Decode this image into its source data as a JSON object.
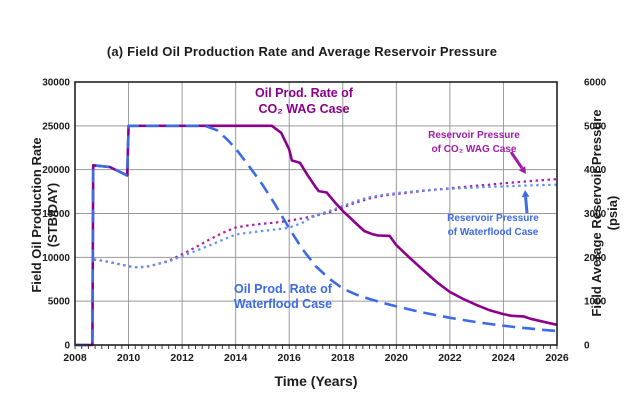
{
  "chart_data": {
    "type": "line",
    "title": "(a) Field Oil Production Rate and Average Reservoir Pressure",
    "xlabel": "Time (Years)",
    "grid": true,
    "x_axis": {
      "min": 2008,
      "max": 2026,
      "major_tick_step": 2,
      "minor_tick_step": 0.25,
      "tick_labels": [
        "2008",
        "2010",
        "2012",
        "2014",
        "2016",
        "2018",
        "2020",
        "2022",
        "2024",
        "2026"
      ]
    },
    "left_axis": {
      "label": "Field Oil Production Rate",
      "unit": "(STB/DAY)",
      "min": 0,
      "max": 30000,
      "tick_step": 5000,
      "ticks": [
        0,
        5000,
        10000,
        15000,
        20000,
        25000,
        30000
      ]
    },
    "right_axis": {
      "label": "Field Average Reservoir Pressure",
      "unit": "(psia)",
      "min": 0,
      "max": 6000,
      "tick_step": 1000,
      "ticks": [
        0,
        1000,
        2000,
        3000,
        4000,
        5000,
        6000
      ]
    },
    "series": [
      {
        "name": "Reservoir Pressure of CO2 WAG Case",
        "axis": "right",
        "color": "#A61CA6",
        "line_style": "dotted",
        "width": 2.2,
        "points": [
          [
            2008.7,
            1950
          ],
          [
            2009,
            1925
          ],
          [
            2009.5,
            1865
          ],
          [
            2010,
            1795
          ],
          [
            2010.35,
            1770
          ],
          [
            2010.7,
            1790
          ],
          [
            2011,
            1835
          ],
          [
            2011.5,
            1920
          ],
          [
            2012,
            2070
          ],
          [
            2012.5,
            2230
          ],
          [
            2013,
            2400
          ],
          [
            2013.5,
            2555
          ],
          [
            2014,
            2680
          ],
          [
            2014.5,
            2730
          ],
          [
            2015,
            2765
          ],
          [
            2015.5,
            2795
          ],
          [
            2016,
            2835
          ],
          [
            2016.5,
            2890
          ],
          [
            2017,
            2950
          ],
          [
            2017.5,
            3030
          ],
          [
            2018,
            3140
          ],
          [
            2018.5,
            3250
          ],
          [
            2019,
            3345
          ],
          [
            2019.5,
            3405
          ],
          [
            2020,
            3445
          ],
          [
            2020.5,
            3480
          ],
          [
            2021,
            3515
          ],
          [
            2021.5,
            3545
          ],
          [
            2022,
            3575
          ],
          [
            2022.5,
            3605
          ],
          [
            2023,
            3635
          ],
          [
            2023.5,
            3660
          ],
          [
            2024,
            3690
          ],
          [
            2024.5,
            3715
          ],
          [
            2025,
            3740
          ],
          [
            2025.5,
            3762
          ],
          [
            2026,
            3785
          ]
        ]
      },
      {
        "name": "Reservoir Pressure of Waterflood Case",
        "axis": "right",
        "color": "#6190F2",
        "line_style": "dotted",
        "width": 2.2,
        "points": [
          [
            2008.7,
            1950
          ],
          [
            2009,
            1925
          ],
          [
            2009.5,
            1865
          ],
          [
            2010,
            1795
          ],
          [
            2010.35,
            1770
          ],
          [
            2010.7,
            1790
          ],
          [
            2011,
            1835
          ],
          [
            2011.5,
            1905
          ],
          [
            2012,
            2030
          ],
          [
            2012.5,
            2145
          ],
          [
            2013,
            2265
          ],
          [
            2013.5,
            2395
          ],
          [
            2014,
            2520
          ],
          [
            2014.5,
            2565
          ],
          [
            2015,
            2600
          ],
          [
            2015.5,
            2635
          ],
          [
            2016,
            2675
          ],
          [
            2016.5,
            2790
          ],
          [
            2017,
            2960
          ],
          [
            2017.5,
            3060
          ],
          [
            2018,
            3170
          ],
          [
            2018.5,
            3285
          ],
          [
            2019,
            3375
          ],
          [
            2019.5,
            3425
          ],
          [
            2020,
            3465
          ],
          [
            2020.5,
            3495
          ],
          [
            2021,
            3525
          ],
          [
            2021.5,
            3550
          ],
          [
            2022,
            3565
          ],
          [
            2022.5,
            3580
          ],
          [
            2023,
            3595
          ],
          [
            2023.5,
            3608
          ],
          [
            2024,
            3618
          ],
          [
            2024.5,
            3630
          ],
          [
            2025,
            3640
          ],
          [
            2025.5,
            3650
          ],
          [
            2026,
            3660
          ]
        ]
      },
      {
        "name": "Oil Prod. Rate of CO2 WAG Case",
        "axis": "left",
        "color": "#8B008B",
        "line_style": "solid",
        "width": 2.6,
        "points": [
          [
            2008,
            0
          ],
          [
            2008.65,
            0
          ],
          [
            2008.68,
            20500
          ],
          [
            2009.3,
            20300
          ],
          [
            2009.95,
            19350
          ],
          [
            2010,
            25000
          ],
          [
            2015.35,
            25000
          ],
          [
            2015.7,
            24200
          ],
          [
            2016,
            22300
          ],
          [
            2016.1,
            21050
          ],
          [
            2016.4,
            20800
          ],
          [
            2016.7,
            19300
          ],
          [
            2017,
            17950
          ],
          [
            2017.1,
            17550
          ],
          [
            2017.4,
            17400
          ],
          [
            2017.7,
            16300
          ],
          [
            2018,
            15300
          ],
          [
            2018.4,
            14150
          ],
          [
            2018.8,
            13000
          ],
          [
            2019.1,
            12650
          ],
          [
            2019.3,
            12500
          ],
          [
            2019.75,
            12450
          ],
          [
            2020,
            11400
          ],
          [
            2020.5,
            9950
          ],
          [
            2021,
            8550
          ],
          [
            2021.5,
            7200
          ],
          [
            2022,
            6050
          ],
          [
            2022.5,
            5250
          ],
          [
            2023,
            4550
          ],
          [
            2023.5,
            3950
          ],
          [
            2024,
            3520
          ],
          [
            2024.3,
            3330
          ],
          [
            2024.75,
            3260
          ],
          [
            2025,
            3000
          ],
          [
            2025.5,
            2650
          ],
          [
            2026,
            2300
          ]
        ]
      },
      {
        "name": "Oil Prod. Rate of Waterflood Case",
        "axis": "left",
        "color": "#3D6BE5",
        "line_style": "dashed",
        "width": 2.6,
        "points": [
          [
            2008,
            0
          ],
          [
            2008.65,
            0
          ],
          [
            2008.68,
            20500
          ],
          [
            2009.3,
            20300
          ],
          [
            2009.95,
            19350
          ],
          [
            2010,
            25000
          ],
          [
            2012.85,
            25000
          ],
          [
            2013.3,
            24500
          ],
          [
            2013.7,
            23400
          ],
          [
            2014,
            22400
          ],
          [
            2014.5,
            20400
          ],
          [
            2015,
            18300
          ],
          [
            2015.5,
            15900
          ],
          [
            2016,
            13300
          ],
          [
            2016.5,
            10900
          ],
          [
            2017,
            8950
          ],
          [
            2017.5,
            7550
          ],
          [
            2018,
            6450
          ],
          [
            2018.5,
            5750
          ],
          [
            2019,
            5250
          ],
          [
            2019.5,
            4800
          ],
          [
            2020,
            4400
          ],
          [
            2020.5,
            4050
          ],
          [
            2021,
            3700
          ],
          [
            2021.5,
            3400
          ],
          [
            2022,
            3100
          ],
          [
            2022.5,
            2850
          ],
          [
            2023,
            2600
          ],
          [
            2023.5,
            2400
          ],
          [
            2024,
            2200
          ],
          [
            2024.5,
            2020
          ],
          [
            2025,
            1870
          ],
          [
            2025.5,
            1720
          ],
          [
            2026,
            1600
          ]
        ]
      }
    ],
    "annotations": {
      "oil_co2": {
        "line1": "Oil Prod. Rate of",
        "line2": "CO₂ WAG Case",
        "color": "#8B008B"
      },
      "oil_wf": {
        "line1": "Oil Prod. Rate of",
        "line2": "Waterflood Case",
        "color": "#3D6BE5"
      },
      "press_co2": {
        "line1": "Reservoir Pressure",
        "line2": "of CO₂ WAG Case",
        "color": "#A01CA8"
      },
      "press_wf": {
        "line1": "Reservoir Pressure",
        "line2": "of Waterflood Case",
        "color": "#3D6BE5"
      }
    },
    "arrows": [
      {
        "name": "press-co2-arrow",
        "color": "#A01CA8",
        "from": [
          511,
          152
        ],
        "to": [
          526,
          174
        ]
      },
      {
        "name": "press-wf-arrow",
        "color": "#3D6BE5",
        "from": [
          527,
          213
        ],
        "to": [
          525,
          190
        ]
      }
    ],
    "colors": {
      "grid": "#9a9a9a",
      "axis": "#222222",
      "text": "#1c1c1c"
    }
  }
}
